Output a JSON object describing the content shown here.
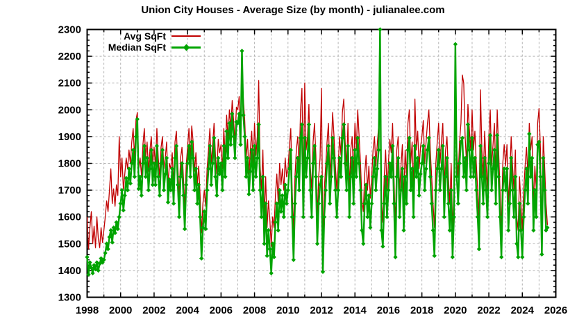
{
  "title": "Union City Houses - Average Size (by month) - julianalee.com",
  "colors": {
    "avg_line": "#c00000",
    "median_line": "#00a400",
    "grid": "#b2b2b2",
    "border": "#000000",
    "text": "#000000",
    "background": "#ffffff"
  },
  "chart_data": {
    "type": "line",
    "title": "Union City Houses - Average Size (by month) - julianalee.com",
    "xlabel": "",
    "ylabel": "",
    "xlim": [
      1998,
      2026
    ],
    "ylim": [
      1300,
      2300
    ],
    "xtick_step": 2,
    "xtick_minor_step": 1,
    "ytick_step": 100,
    "ytick_minor_step": 20,
    "grid": "dashed gray; vertical every year, horizontal every 100",
    "legend_position": "top-left-inside",
    "x_tick_labels": [
      "1998",
      "2000",
      "2002",
      "2004",
      "2006",
      "2008",
      "2010",
      "2012",
      "2014",
      "2016",
      "2018",
      "2020",
      "2022",
      "2024",
      "2026"
    ],
    "y_tick_labels": [
      "1300",
      "1400",
      "1500",
      "1600",
      "1700",
      "1800",
      "1900",
      "2000",
      "2100",
      "2200",
      "2300"
    ],
    "x_start": 1998.0,
    "x_step": 0.0833333,
    "series": [
      {
        "name": "Avg SqFt",
        "color": "#c00000",
        "style": "line",
        "values": [
          1600,
          1480,
          1560,
          1620,
          1500,
          1565,
          1485,
          1600,
          1520,
          1485,
          1560,
          1505,
          1550,
          1600,
          1660,
          1620,
          1700,
          1780,
          1650,
          1705,
          1640,
          1720,
          1680,
          1900,
          1750,
          1820,
          1700,
          1760,
          1820,
          1780,
          1850,
          1800,
          1880,
          1930,
          1820,
          1960,
          1990,
          1780,
          1820,
          1750,
          1870,
          1930,
          1820,
          1880,
          1770,
          1850,
          1900,
          1800,
          1860,
          1790,
          1930,
          1820,
          1750,
          1860,
          1900,
          1780,
          1820,
          1880,
          1720,
          1800,
          1780,
          1840,
          1720,
          1880,
          1920,
          1790,
          1680,
          1820,
          1860,
          1750,
          1640,
          1790,
          1860,
          1930,
          1820,
          1940,
          1880,
          1770,
          1840,
          1720,
          1790,
          1680,
          1540,
          1650,
          1700,
          1640,
          1780,
          1850,
          1930,
          1800,
          1870,
          1950,
          1830,
          1760,
          1890,
          1840,
          1870,
          1780,
          1930,
          1820,
          1980,
          1890,
          2000,
          1930,
          2035,
          1960,
          1880,
          2010,
          2000,
          2050,
          1930,
          2150,
          2040,
          1960,
          1820,
          1890,
          1760,
          1850,
          1920,
          1780,
          1950,
          1830,
          1900,
          2110,
          1790,
          1700,
          1850,
          1600,
          1750,
          1560,
          1660,
          1590,
          1490,
          1600,
          1560,
          1680,
          1760,
          1650,
          1800,
          1720,
          1780,
          1700,
          1820,
          1750,
          1780,
          1860,
          1930,
          1700,
          1550,
          1750,
          1850,
          1900,
          1790,
          2000,
          2080,
          1700,
          2100,
          1850,
          1900,
          2020,
          1790,
          1700,
          1880,
          1950,
          1830,
          1600,
          1750,
          1820,
          2080,
          1500,
          1700,
          1790,
          1880,
          1950,
          1750,
          1850,
          1990,
          1900,
          1790,
          1700,
          1790,
          1900,
          1830,
          1990,
          2040,
          1880,
          1790,
          1950,
          1700,
          1850,
          1900,
          1750,
          1950,
          1850,
          2000,
          1900,
          1800,
          1660,
          1620,
          1760,
          1830,
          1700,
          1790,
          1670,
          1750,
          1850,
          1900,
          1790,
          1870,
          1940,
          2150,
          1660,
          1580,
          1750,
          1850,
          1700,
          1800,
          1890,
          1840,
          1950,
          1750,
          1560,
          1850,
          1900,
          1700,
          1790,
          1870,
          1660,
          1850,
          1750,
          1950,
          2000,
          1800,
          1880,
          1700,
          2040,
          1850,
          1920,
          1780,
          1860,
          1900,
          1960,
          1800,
          1880,
          1950,
          2000,
          1850,
          1750,
          1650,
          1560,
          1800,
          1880,
          1950,
          1800,
          1880,
          1950,
          1700,
          1850,
          1900,
          1750,
          1650,
          1800,
          1550,
          1700,
          2100,
          1850,
          1750,
          1880,
          1950,
          2130,
          2100,
          1900,
          1800,
          2020,
          1930,
          1850,
          2000,
          1850,
          1920,
          1800,
          1700,
          1590,
          2075,
          1850,
          1750,
          1920,
          1800,
          1700,
          1900,
          2000,
          1790,
          1870,
          1950,
          1750,
          2000,
          1850,
          1700,
          1550,
          1800,
          1870,
          1790,
          1870,
          1650,
          1750,
          1900,
          1790,
          1700,
          1850,
          1600,
          1550,
          1750,
          1650,
          1550,
          1700,
          1790,
          1860,
          1750,
          1950,
          1850,
          1900,
          1650,
          1790,
          1700,
          1950,
          2005,
          1850,
          1560,
          1900,
          1790,
          1650,
          1570
        ]
      },
      {
        "name": "Median SqFt",
        "color": "#00a400",
        "style": "line+diamond-points",
        "values": [
          1450,
          1385,
          1430,
          1410,
          1390,
          1420,
          1405,
          1430,
          1400,
          1425,
          1445,
          1430,
          1440,
          1465,
          1500,
          1480,
          1525,
          1550,
          1505,
          1560,
          1540,
          1580,
          1555,
          1600,
          1650,
          1700,
          1625,
          1680,
          1745,
          1700,
          1780,
          1725,
          1800,
          1850,
          1750,
          1900,
          1965,
          1705,
          1750,
          1680,
          1800,
          1865,
          1750,
          1820,
          1700,
          1780,
          1850,
          1720,
          1800,
          1720,
          1865,
          1750,
          1680,
          1800,
          1850,
          1700,
          1760,
          1820,
          1655,
          1740,
          1700,
          1780,
          1650,
          1820,
          1865,
          1720,
          1600,
          1750,
          1800,
          1680,
          1555,
          1720,
          1800,
          1865,
          1750,
          1880,
          1820,
          1700,
          1780,
          1650,
          1720,
          1600,
          1445,
          1560,
          1620,
          1555,
          1700,
          1780,
          1865,
          1720,
          1800,
          1895,
          1750,
          1680,
          1820,
          1760,
          1800,
          1700,
          1865,
          1750,
          1920,
          1820,
          1950,
          1870,
          1985,
          1900,
          1820,
          1955,
          1950,
          1985,
          1870,
          2220,
          1980,
          1900,
          1750,
          1820,
          1685,
          1770,
          1850,
          1700,
          1865,
          1750,
          1820,
          1945,
          1700,
          1600,
          1750,
          1500,
          1650,
          1455,
          1550,
          1480,
          1390,
          1500,
          1450,
          1580,
          1650,
          1550,
          1700,
          1620,
          1680,
          1600,
          1720,
          1650,
          1700,
          1780,
          1850,
          1600,
          1440,
          1650,
          1750,
          1820,
          1700,
          1895,
          1945,
          1600,
          1895,
          1750,
          1820,
          1945,
          1700,
          1600,
          1800,
          1865,
          1750,
          1500,
          1650,
          1720,
          1750,
          1395,
          1600,
          1700,
          1800,
          1865,
          1650,
          1750,
          1895,
          1820,
          1700,
          1600,
          1700,
          1820,
          1750,
          1895,
          1945,
          1800,
          1700,
          1865,
          1600,
          1750,
          1820,
          1650,
          1850,
          1750,
          1895,
          1800,
          1700,
          1550,
          1500,
          1650,
          1720,
          1600,
          1680,
          1560,
          1650,
          1750,
          1820,
          1700,
          1780,
          1850,
          2300,
          1550,
          1490,
          1650,
          1750,
          1600,
          1700,
          1800,
          1750,
          1865,
          1650,
          1450,
          1750,
          1820,
          1600,
          1700,
          1780,
          1550,
          1750,
          1650,
          1850,
          1895,
          1700,
          1780,
          1600,
          1865,
          1750,
          1820,
          1680,
          1760,
          1800,
          1865,
          1700,
          1780,
          1850,
          1895,
          1750,
          1650,
          1550,
          1455,
          1700,
          1780,
          1850,
          1700,
          1780,
          1865,
          1600,
          1750,
          1820,
          1650,
          1550,
          1700,
          1450,
          1600,
          2245,
          1750,
          1650,
          1800,
          1880,
          1895,
          1750,
          1820,
          1700,
          1945,
          1850,
          1750,
          1895,
          1750,
          1820,
          1700,
          1600,
          1480,
          1865,
          1750,
          1650,
          1820,
          1700,
          1600,
          1800,
          1905,
          1700,
          1780,
          1850,
          1650,
          1905,
          1750,
          1600,
          1450,
          1700,
          1780,
          1700,
          1780,
          1550,
          1650,
          1820,
          1700,
          1600,
          1750,
          1500,
          1450,
          1650,
          1550,
          1450,
          1600,
          1700,
          1780,
          1650,
          1910,
          1750,
          1820,
          1550,
          1700,
          1600,
          1870,
          1880,
          1750,
          1460,
          1820,
          1700,
          1550,
          1560
        ]
      }
    ]
  },
  "legend": {
    "items": [
      {
        "label": "Avg SqFt"
      },
      {
        "label": "Median SqFt"
      }
    ]
  }
}
